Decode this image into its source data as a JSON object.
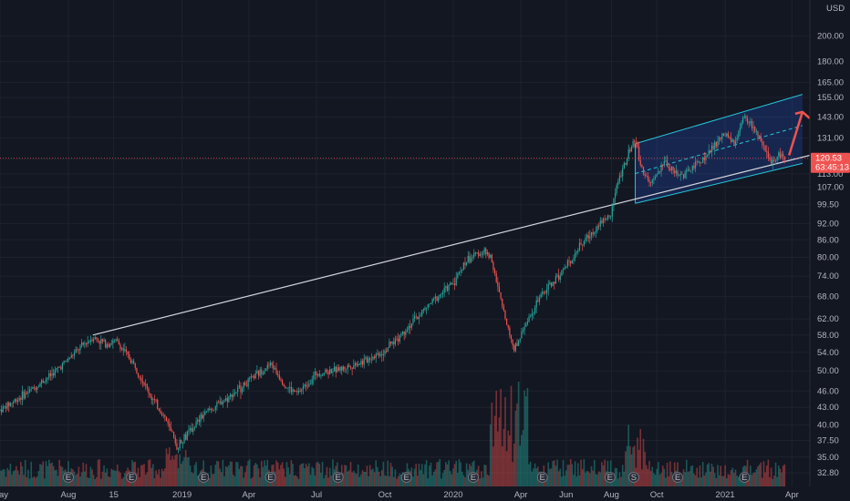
{
  "chart_data": {
    "type": "candlestick",
    "currency": "USD",
    "y_scale": "log",
    "ylim": [
      31,
      232
    ],
    "grid": true,
    "y_ticks": [
      "200.00",
      "180.00",
      "165.00",
      "155.00",
      "143.00",
      "131.00",
      "120.00",
      "113.00",
      "107.00",
      "99.50",
      "92.00",
      "86.00",
      "80.00",
      "74.00",
      "68.00",
      "62.00",
      "58.00",
      "54.00",
      "50.00",
      "46.00",
      "43.00",
      "40.00",
      "37.50",
      "35.00",
      "32.80"
    ],
    "x_ticks": [
      "May",
      "Aug",
      "15",
      "2019",
      "Apr",
      "Jul",
      "Oct",
      "2020",
      "Apr",
      "Jun",
      "Aug",
      "Oct",
      "2021",
      "Apr"
    ],
    "x_domain": [
      "2018-05-01",
      "2021-04-25"
    ],
    "price_tag": {
      "price": "120.53",
      "countdown": "63:45:13",
      "value": 120.53
    },
    "price_series": [
      [
        "2018-05-01",
        42.5
      ],
      [
        "2018-06-15",
        46.5
      ],
      [
        "2018-07-15",
        50.0
      ],
      [
        "2018-08-20",
        55.5
      ],
      [
        "2018-09-03",
        57.5
      ],
      [
        "2018-09-20",
        56.0
      ],
      [
        "2018-10-05",
        56.5
      ],
      [
        "2018-10-30",
        51.0
      ],
      [
        "2018-11-20",
        45.0
      ],
      [
        "2018-12-10",
        41.0
      ],
      [
        "2018-12-24",
        36.5
      ],
      [
        "2019-01-08",
        38.5
      ],
      [
        "2019-02-01",
        42.0
      ],
      [
        "2019-03-01",
        44.5
      ],
      [
        "2019-04-01",
        48.0
      ],
      [
        "2019-05-01",
        51.5
      ],
      [
        "2019-05-20",
        47.0
      ],
      [
        "2019-06-05",
        45.5
      ],
      [
        "2019-07-01",
        49.5
      ],
      [
        "2019-08-05",
        50.5
      ],
      [
        "2019-09-01",
        52.0
      ],
      [
        "2019-10-01",
        54.5
      ],
      [
        "2019-11-01",
        60.0
      ],
      [
        "2019-12-01",
        66.0
      ],
      [
        "2020-01-01",
        72.0
      ],
      [
        "2020-01-20",
        79.5
      ],
      [
        "2020-02-10",
        82.0
      ],
      [
        "2020-02-21",
        80.0
      ],
      [
        "2020-03-01",
        70.0
      ],
      [
        "2020-03-16",
        59.0
      ],
      [
        "2020-03-23",
        54.5
      ],
      [
        "2020-04-10",
        62.0
      ],
      [
        "2020-05-01",
        69.0
      ],
      [
        "2020-06-01",
        77.0
      ],
      [
        "2020-06-20",
        84.0
      ],
      [
        "2020-07-15",
        92.0
      ],
      [
        "2020-07-30",
        95.0
      ],
      [
        "2020-08-10",
        110.0
      ],
      [
        "2020-08-25",
        124.0
      ],
      [
        "2020-09-02",
        131.0
      ],
      [
        "2020-09-10",
        116.0
      ],
      [
        "2020-09-23",
        108.0
      ],
      [
        "2020-10-12",
        119.0
      ],
      [
        "2020-10-25",
        114.0
      ],
      [
        "2020-11-05",
        112.0
      ],
      [
        "2020-11-25",
        118.0
      ],
      [
        "2020-12-10",
        123.0
      ],
      [
        "2020-12-29",
        133.0
      ],
      [
        "2021-01-15",
        128.0
      ],
      [
        "2021-01-26",
        143.0
      ],
      [
        "2021-02-10",
        136.0
      ],
      [
        "2021-02-25",
        122.0
      ],
      [
        "2021-03-05",
        119.0
      ],
      [
        "2021-03-15",
        123.0
      ],
      [
        "2021-03-22",
        120.53
      ]
    ],
    "trend_line": {
      "from": [
        "2018-09-03",
        58.0
      ],
      "to": [
        "2021-04-25",
        122.0
      ],
      "color": "#d1d4dc"
    },
    "channel": {
      "start": [
        "2020-09-02",
        100.0
      ],
      "end": [
        "2021-04-15",
        118.0
      ],
      "upper_start": 128.0,
      "upper_end": 157.0,
      "mid_end": 138.0,
      "fill": "#2962ff",
      "line": "#26c6da"
    },
    "projection_arrow": {
      "from": [
        "2021-03-28",
        122.0
      ],
      "to": [
        "2021-04-15",
        146.0
      ],
      "color": "#ef5350"
    },
    "volume_events": [
      {
        "date": "2018-08-01",
        "label": "E"
      },
      {
        "date": "2018-10-25",
        "label": "E"
      },
      {
        "date": "2019-01-30",
        "label": "E"
      },
      {
        "date": "2019-04-30",
        "label": "E"
      },
      {
        "date": "2019-07-30",
        "label": "E"
      },
      {
        "date": "2019-10-30",
        "label": "E"
      },
      {
        "date": "2020-01-28",
        "label": "E"
      },
      {
        "date": "2020-04-30",
        "label": "E"
      },
      {
        "date": "2020-07-30",
        "label": "E"
      },
      {
        "date": "2020-08-31",
        "label": "S"
      },
      {
        "date": "2020-10-29",
        "label": "E"
      },
      {
        "date": "2021-01-27",
        "label": "E"
      }
    ],
    "colors": {
      "up": "#26a69a",
      "down": "#ef5350",
      "bg": "#131722",
      "grid": "#1e222d",
      "axis_text": "#b2b5be"
    }
  }
}
